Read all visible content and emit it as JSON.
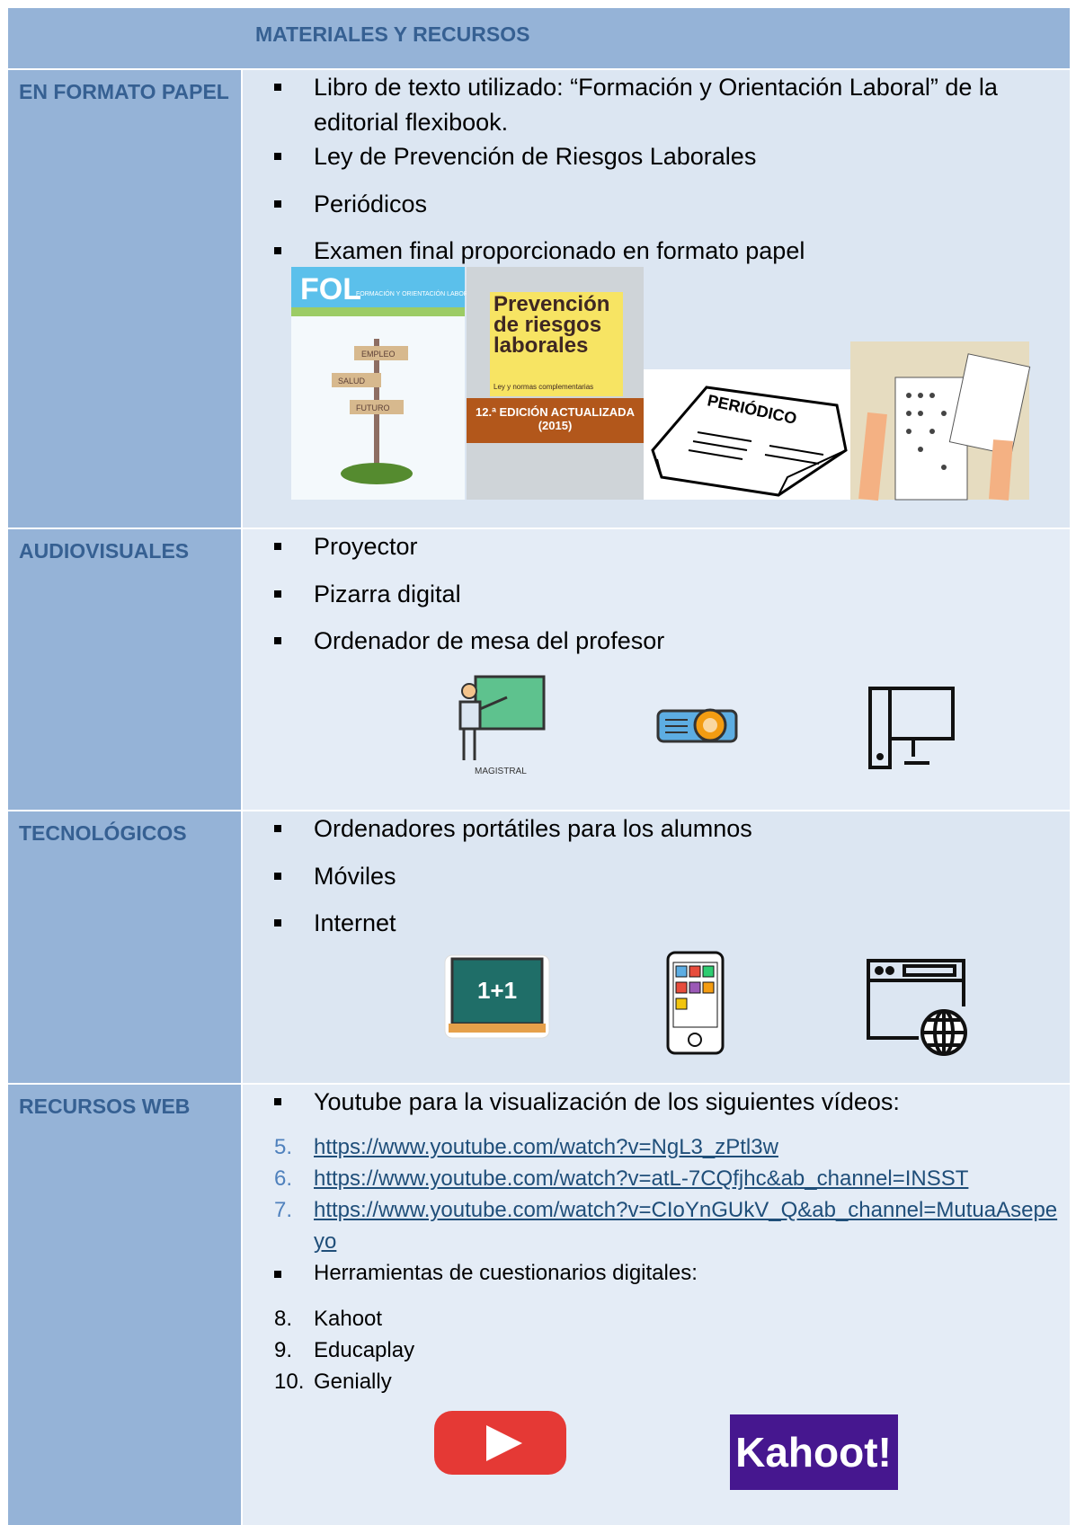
{
  "header": {
    "title": "MATERIALES Y RECURSOS"
  },
  "rows": [
    {
      "label": "EN FORMATO PAPEL",
      "items": [
        {
          "text": "Libro de texto utilizado: “Formación y Orientación Laboral” de la editorial flexibook."
        },
        {
          "text": "Ley de Prevención de Riesgos Laborales"
        },
        {
          "text": "Periódicos"
        },
        {
          "text": "Examen final proporcionado en formato papel"
        }
      ],
      "images": {
        "fol": {
          "title": "FOL",
          "subtitle": "FORMACIÓN Y ORIENTACIÓN LABORAL",
          "signs": [
            "EMPLEO",
            "SALUD",
            "FUTURO"
          ]
        },
        "prl": {
          "title": "Prevención de riesgos laborales",
          "subtitle": "Ley y normas complementarias",
          "edition": "12.ª EDICIÓN ACTUALIZADA (2015)"
        },
        "newspaper": "PERIÓDICO"
      }
    },
    {
      "label": "AUDIOVISUALES",
      "items": [
        {
          "text": "Proyector"
        },
        {
          "text": "Pizarra digital"
        },
        {
          "text": "Ordenador de mesa del profesor"
        }
      ],
      "images": {
        "teacher": "MAGISTRAL"
      }
    },
    {
      "label": "TECNOLÓGICOS",
      "items": [
        {
          "text": "Ordenadores portátiles para los alumnos"
        },
        {
          "text": "Móviles"
        },
        {
          "text": "Internet"
        }
      ],
      "images": {
        "board": "1+1"
      }
    },
    {
      "label": "RECURSOS WEB",
      "items": [
        {
          "text": "Youtube para la visualización de los siguientes vídeos:"
        },
        {
          "marker": "5.",
          "text": "https://www.youtube.com/watch?v=NgL3_zPtl3w",
          "link": true
        },
        {
          "marker": "6.",
          "text": "https://www.youtube.com/watch?v=atL-7CQfjhc&ab_channel=INSST",
          "link": true
        },
        {
          "marker": "7.",
          "text": "https://www.youtube.com/watch?v=CIoYnGUkV_Q&ab_channel=MutuaAsepeyo",
          "link": true
        },
        {
          "text": "Herramientas de cuestionarios digitales:"
        },
        {
          "marker": "8.",
          "text": "Kahoot"
        },
        {
          "marker": "9.",
          "text": "Educaplay"
        },
        {
          "marker": "10.",
          "text": "Genially"
        }
      ],
      "images": {
        "kahoot": "Kahoot!"
      }
    }
  ]
}
